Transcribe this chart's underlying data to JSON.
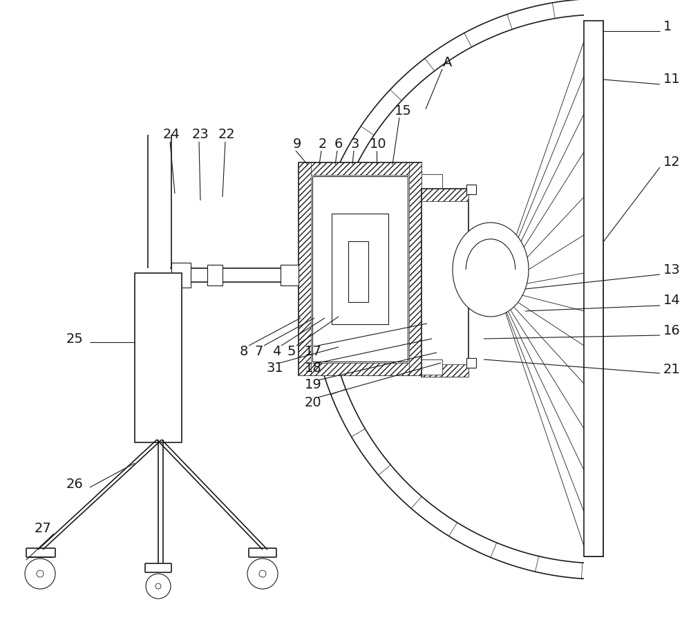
{
  "bg_color": "#ffffff",
  "lc": "#1a1a1a",
  "figsize": [
    10.0,
    8.94
  ],
  "dpi": 100
}
